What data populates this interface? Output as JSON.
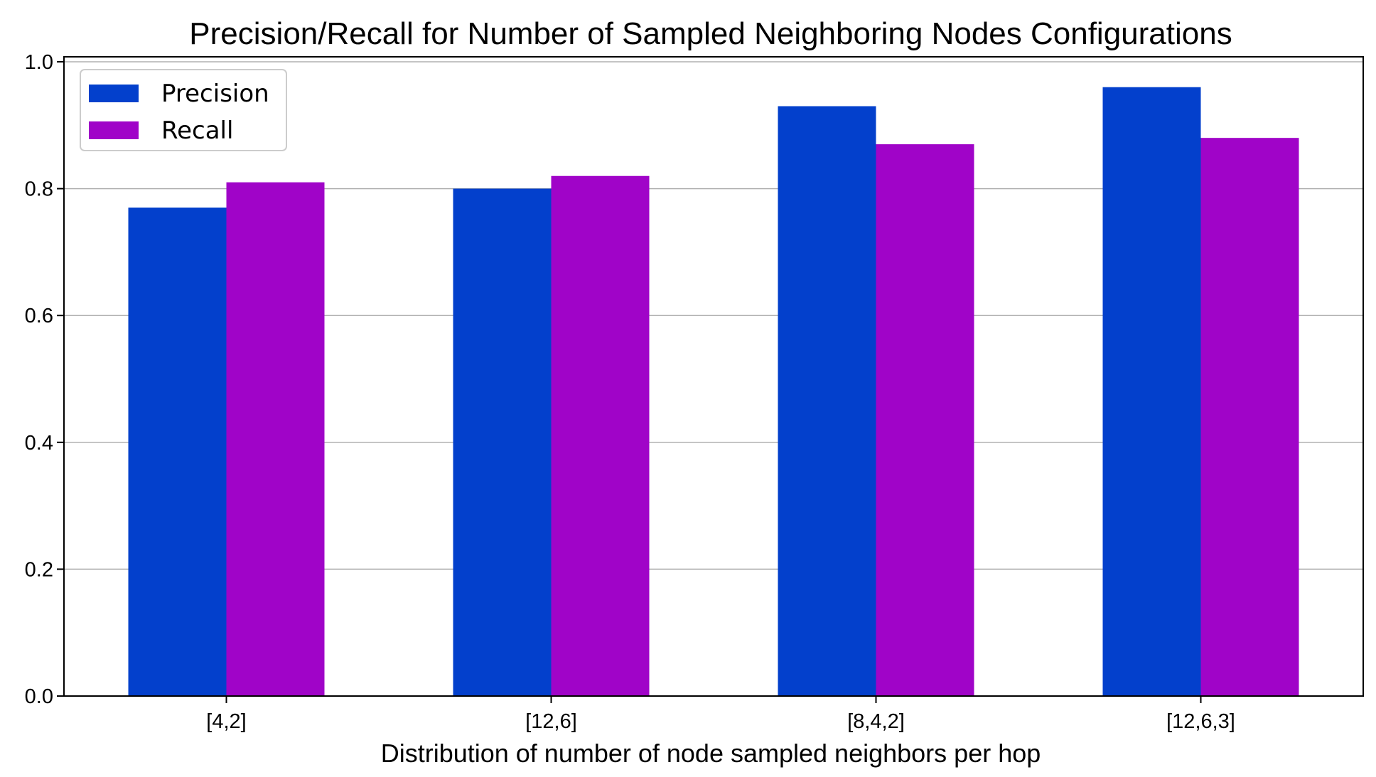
{
  "chart_data": {
    "type": "bar",
    "title": "Precision/Recall for Number of Sampled Neighboring Nodes Configurations",
    "xlabel": "Distribution of number of node sampled neighbors per hop",
    "ylabel": "",
    "categories": [
      "[4,2]",
      "[12,6]",
      "[8,4,2]",
      "[12,6,3]"
    ],
    "series": [
      {
        "name": "Precision",
        "color": "#0340cc",
        "values": [
          0.77,
          0.8,
          0.93,
          0.96
        ]
      },
      {
        "name": "Recall",
        "color": "#a004c8",
        "values": [
          0.81,
          0.82,
          0.87,
          0.88
        ]
      }
    ],
    "ylim": [
      0,
      1.0
    ],
    "yticks": [
      0.0,
      0.2,
      0.4,
      0.6,
      0.8,
      1.0
    ],
    "ytick_labels": [
      "0.0",
      "0.2",
      "0.4",
      "0.6",
      "0.8",
      "1.0"
    ],
    "grid": "y",
    "legend_position": "top-left"
  }
}
